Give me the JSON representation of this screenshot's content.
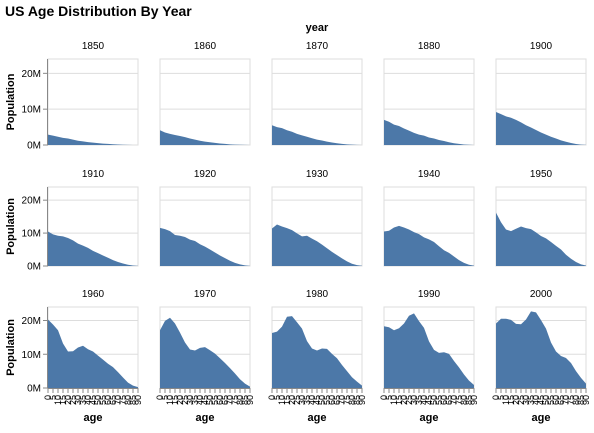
{
  "chart_data": {
    "type": "area",
    "title": "US Age Distribution By Year",
    "column_title": "year",
    "ylabel": "Population",
    "xlabel": "age",
    "ylim": [
      0,
      24000000
    ],
    "y_ticks": [
      {
        "value": 0,
        "label": "0M"
      },
      {
        "value": 10000000,
        "label": "10M"
      },
      {
        "value": 20000000,
        "label": "20M"
      }
    ],
    "x_ticks": [
      "0",
      "5",
      "10",
      "15",
      "20",
      "25",
      "30",
      "35",
      "40",
      "45",
      "50",
      "55",
      "60",
      "65",
      "70",
      "75",
      "80",
      "85",
      "90"
    ],
    "grid": true,
    "color": "#4c78a8",
    "ages": [
      0,
      5,
      10,
      15,
      20,
      25,
      30,
      35,
      40,
      45,
      50,
      55,
      60,
      65,
      70,
      75,
      80,
      85,
      90
    ],
    "panels": [
      {
        "year": "1850",
        "values": [
          2900000,
          2600000,
          2300000,
          2000000,
          1800000,
          1500000,
          1200000,
          1000000,
          800000,
          650000,
          520000,
          400000,
          300000,
          200000,
          130000,
          70000,
          35000,
          15000,
          5000
        ]
      },
      {
        "year": "1860",
        "values": [
          4100000,
          3500000,
          3100000,
          2800000,
          2500000,
          2200000,
          1800000,
          1500000,
          1200000,
          950000,
          750000,
          580000,
          420000,
          300000,
          190000,
          110000,
          55000,
          20000,
          8000
        ]
      },
      {
        "year": "1870",
        "values": [
          5500000,
          5000000,
          4700000,
          4100000,
          3700000,
          3100000,
          2700000,
          2300000,
          1900000,
          1500000,
          1250000,
          950000,
          700000,
          500000,
          320000,
          180000,
          90000,
          35000,
          10000
        ]
      },
      {
        "year": "1880",
        "values": [
          7000000,
          6500000,
          5700000,
          5300000,
          4600000,
          4000000,
          3400000,
          2900000,
          2600000,
          2100000,
          1800000,
          1400000,
          1100000,
          750000,
          500000,
          300000,
          150000,
          60000,
          15000
        ]
      },
      {
        "year": "1900",
        "values": [
          9200000,
          8600000,
          8000000,
          7600000,
          7000000,
          6300000,
          5500000,
          4900000,
          4200000,
          3500000,
          2900000,
          2300000,
          1800000,
          1300000,
          900000,
          550000,
          280000,
          110000,
          30000
        ]
      },
      {
        "year": "1910",
        "values": [
          10500000,
          9600000,
          9200000,
          9000000,
          8500000,
          7800000,
          6800000,
          6200000,
          5500000,
          4600000,
          3900000,
          3200000,
          2500000,
          1800000,
          1200000,
          750000,
          380000,
          150000,
          40000
        ]
      },
      {
        "year": "1920",
        "values": [
          11600000,
          11200000,
          10600000,
          9400000,
          9200000,
          8800000,
          8000000,
          7600000,
          6600000,
          5900000,
          5000000,
          4100000,
          3200000,
          2400000,
          1600000,
          950000,
          500000,
          200000,
          50000
        ]
      },
      {
        "year": "1930",
        "values": [
          11400000,
          12600000,
          12000000,
          11500000,
          10900000,
          9900000,
          9000000,
          9200000,
          8300000,
          7500000,
          6500000,
          5400000,
          4300000,
          3300000,
          2300000,
          1400000,
          700000,
          280000,
          80000
        ]
      },
      {
        "year": "1940",
        "values": [
          10500000,
          10700000,
          11700000,
          12200000,
          11700000,
          11100000,
          10300000,
          9700000,
          8700000,
          8100000,
          7300000,
          6000000,
          4800000,
          4000000,
          2900000,
          1800000,
          950000,
          380000,
          120000
        ]
      },
      {
        "year": "1950",
        "values": [
          16200000,
          13300000,
          11100000,
          10600000,
          11300000,
          12000000,
          11500000,
          11200000,
          10200000,
          9100000,
          8400000,
          7300000,
          6100000,
          5000000,
          3400000,
          2200000,
          1200000,
          500000,
          150000
        ]
      },
      {
        "year": "1960",
        "values": [
          20300000,
          18800000,
          17100000,
          13200000,
          10800000,
          10900000,
          12000000,
          12500000,
          11500000,
          10800000,
          9600000,
          8400000,
          7200000,
          6200000,
          4700000,
          3100000,
          1600000,
          700000,
          250000
        ]
      },
      {
        "year": "1970",
        "values": [
          17100000,
          19900000,
          20800000,
          19100000,
          16400000,
          13500000,
          11400000,
          11100000,
          11900000,
          12100000,
          11200000,
          10200000,
          8800000,
          7400000,
          5900000,
          4300000,
          2600000,
          1300000,
          400000
        ]
      },
      {
        "year": "1980",
        "values": [
          16300000,
          16700000,
          18200000,
          21100000,
          21300000,
          19500000,
          17600000,
          13900000,
          11700000,
          11100000,
          11700000,
          11600000,
          10100000,
          8800000,
          6800000,
          5000000,
          3200000,
          1900000,
          700000
        ]
      },
      {
        "year": "1990",
        "values": [
          18300000,
          18000000,
          17100000,
          17700000,
          19100000,
          21400000,
          22100000,
          19800000,
          17800000,
          13800000,
          11300000,
          10400000,
          10600000,
          10100000,
          8000000,
          6100000,
          4000000,
          2200000,
          900000
        ]
      },
      {
        "year": "2000",
        "values": [
          19100000,
          20500000,
          20500000,
          20200000,
          19000000,
          18900000,
          20300000,
          22700000,
          22400000,
          20100000,
          17600000,
          13500000,
          10800000,
          9500000,
          8900000,
          7400000,
          5000000,
          3000000,
          1300000
        ]
      }
    ]
  }
}
